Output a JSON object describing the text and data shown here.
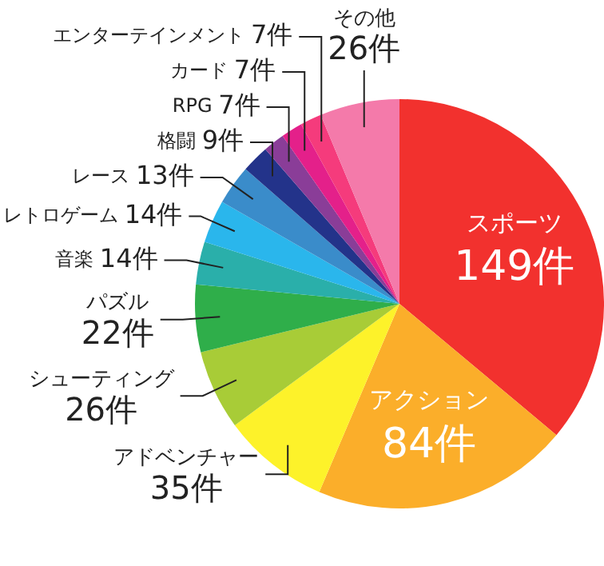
{
  "chart_data": {
    "type": "pie",
    "categories": [
      "スポーツ",
      "アクション",
      "アドベンチャー",
      "シューティング",
      "パズル",
      "音楽",
      "レトロゲーム",
      "レース",
      "格闘",
      "RPG",
      "カード",
      "エンターテインメント",
      "その他"
    ],
    "values": [
      149,
      84,
      35,
      26,
      22,
      14,
      14,
      13,
      9,
      7,
      7,
      7,
      26
    ],
    "value_labels": [
      "149件",
      "84件",
      "35件",
      "26件",
      "22件",
      "14件",
      "14件",
      "13件",
      "9件",
      "7件",
      "7件",
      "7件",
      "26件"
    ],
    "colors": [
      "#f2312e",
      "#fbae2a",
      "#fdf22a",
      "#a8cc37",
      "#2fae4a",
      "#2aafaa",
      "#2ab6ec",
      "#3a8cca",
      "#23338a",
      "#8a3d98",
      "#e4208a",
      "#f53b7c",
      "#f47aaa"
    ],
    "legend": false
  }
}
